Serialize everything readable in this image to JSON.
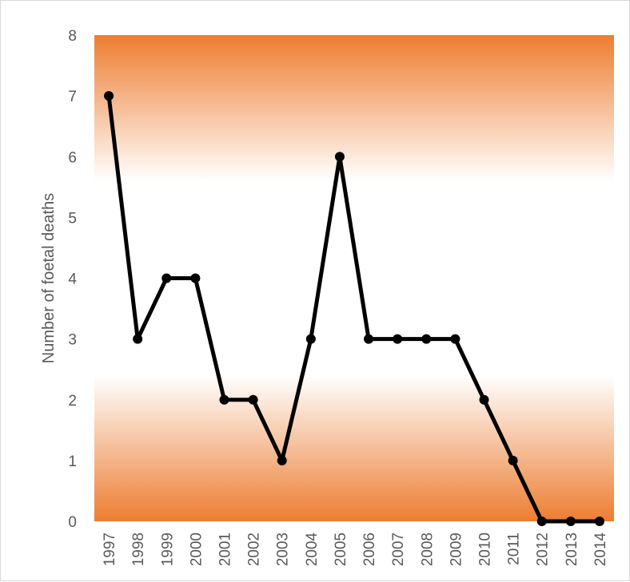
{
  "chart_data": {
    "type": "line",
    "title": "",
    "xlabel": "",
    "ylabel": "Number of foetal deaths",
    "categories": [
      "1997",
      "1998",
      "1999",
      "2000",
      "2001",
      "2002",
      "2003",
      "2004",
      "2005",
      "2006",
      "2007",
      "2008",
      "2009",
      "2010",
      "2011",
      "2012",
      "2013",
      "2014"
    ],
    "series": [
      {
        "values": [
          7,
          3,
          4,
          4,
          2,
          2,
          1,
          3,
          6,
          3,
          3,
          3,
          3,
          2,
          1,
          0,
          0,
          0
        ],
        "color": "#000000"
      }
    ],
    "ylim": [
      0,
      8
    ],
    "yticks": [
      "0",
      "1",
      "2",
      "3",
      "4",
      "5",
      "6",
      "7",
      "8"
    ],
    "grid": false,
    "legend": "none",
    "background_gradient": {
      "edge_color": "#ED7D31",
      "center_color": "#FFFFFF"
    }
  }
}
